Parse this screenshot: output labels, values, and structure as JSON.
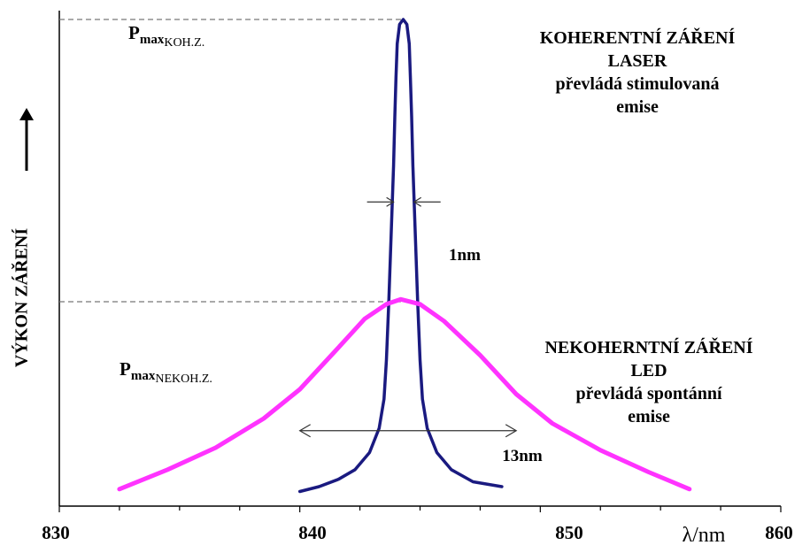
{
  "chart_data": {
    "type": "line",
    "xlabel": "λ/nm",
    "ylabel": "VÝKON ZÁŘENÍ",
    "xlim": [
      830,
      860
    ],
    "ylim": [
      0,
      1
    ],
    "x_ticks": [
      830,
      840,
      850,
      860
    ],
    "x_tick_labels": [
      "830",
      "840",
      "850",
      "860"
    ],
    "grid": false,
    "series": [
      {
        "key": "laser",
        "color": "#1a1a80",
        "points": [
          [
            840.0,
            0.03
          ],
          [
            840.8,
            0.04
          ],
          [
            841.6,
            0.055
          ],
          [
            842.3,
            0.075
          ],
          [
            842.9,
            0.11
          ],
          [
            843.3,
            0.16
          ],
          [
            843.5,
            0.22
          ],
          [
            843.6,
            0.3
          ],
          [
            843.7,
            0.42
          ],
          [
            843.8,
            0.56
          ],
          [
            843.9,
            0.7
          ],
          [
            843.95,
            0.8
          ],
          [
            844.0,
            0.88
          ],
          [
            844.05,
            0.95
          ],
          [
            844.15,
            0.99
          ],
          [
            844.3,
            1.0
          ],
          [
            844.45,
            0.99
          ],
          [
            844.55,
            0.95
          ],
          [
            844.6,
            0.88
          ],
          [
            844.65,
            0.8
          ],
          [
            844.7,
            0.7
          ],
          [
            844.8,
            0.56
          ],
          [
            844.9,
            0.42
          ],
          [
            845.0,
            0.3
          ],
          [
            845.1,
            0.22
          ],
          [
            845.3,
            0.16
          ],
          [
            845.7,
            0.11
          ],
          [
            846.3,
            0.075
          ],
          [
            847.2,
            0.05
          ],
          [
            848.4,
            0.04
          ]
        ]
      },
      {
        "key": "led",
        "color": "#ff33ff",
        "points": [
          [
            832.5,
            0.035
          ],
          [
            834.5,
            0.075
          ],
          [
            836.5,
            0.12
          ],
          [
            838.5,
            0.18
          ],
          [
            840.0,
            0.24
          ],
          [
            841.5,
            0.32
          ],
          [
            842.7,
            0.385
          ],
          [
            843.6,
            0.415
          ],
          [
            844.2,
            0.425
          ],
          [
            845.0,
            0.415
          ],
          [
            846.0,
            0.38
          ],
          [
            847.5,
            0.31
          ],
          [
            849.0,
            0.23
          ],
          [
            850.5,
            0.17
          ],
          [
            852.5,
            0.115
          ],
          [
            854.5,
            0.07
          ],
          [
            856.2,
            0.035
          ]
        ]
      }
    ],
    "annotations": {
      "pmax_koh": {
        "main": "P",
        "sub1": "max",
        "sub2": "KOH.Z.",
        "y": 1.0
      },
      "pmax_nekoh": {
        "main": "P",
        "sub1": "max",
        "sub2": "NEKOH.Z.",
        "y": 0.42
      },
      "laser_width": {
        "text": "1nm",
        "x1": 843.9,
        "x2": 844.75,
        "y": 0.625
      },
      "led_width": {
        "text": "13nm",
        "x1": 840.0,
        "x2": 849.0,
        "y": 0.155
      },
      "laser_desc": [
        "KOHERENTNÍ ZÁŘENÍ",
        "LASER",
        "převládá stimulovaná",
        "emise"
      ],
      "led_desc": [
        "NEKOHERNTNÍ ZÁŘENÍ",
        "LED",
        "převládá spontánní",
        "emise"
      ]
    }
  }
}
